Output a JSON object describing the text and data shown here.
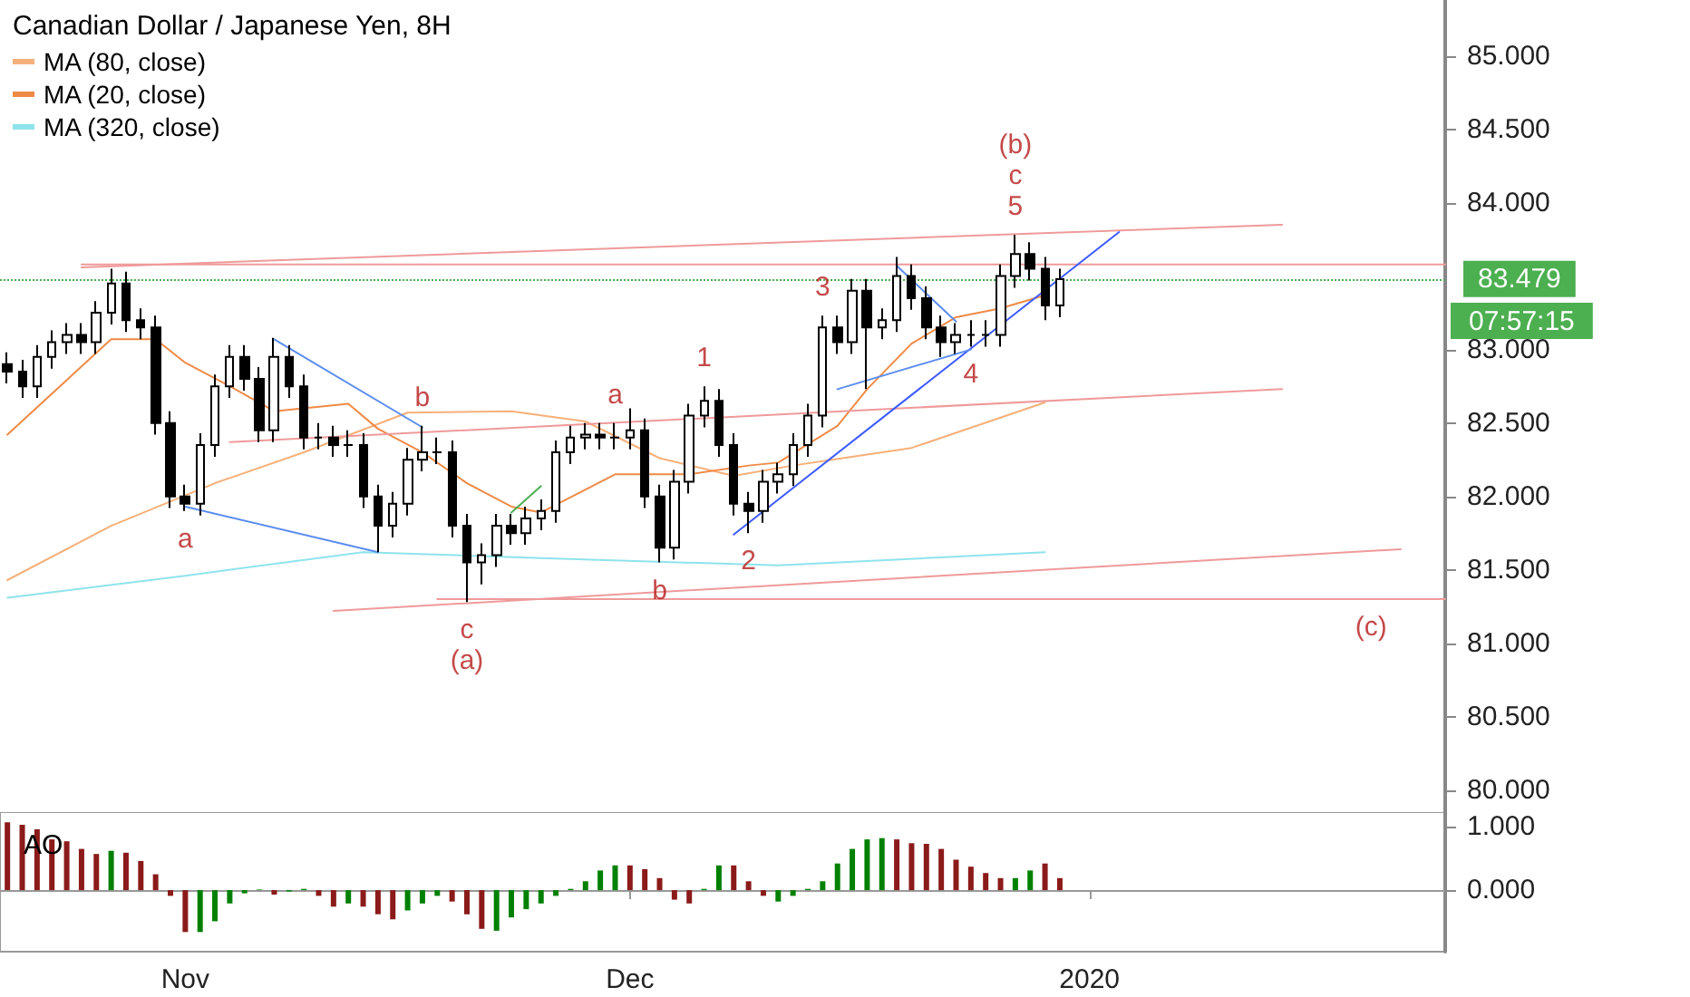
{
  "chart_data": [
    {
      "type": "candlestick",
      "title": "Canadian Dollar / Japanese Yen, 8H",
      "color": "#000000",
      "x": [
        "2019-10-20",
        "2019-10-21",
        "2019-10-22",
        "2019-10-23",
        "2019-10-24",
        "2019-10-25",
        "2019-10-26",
        "2019-10-27",
        "2019-10-28",
        "2019-10-29",
        "2019-10-30",
        "2019-10-31",
        "2019-11-01",
        "2019-11-02",
        "2019-11-03",
        "2019-11-04",
        "2019-11-05",
        "2019-11-06",
        "2019-11-07",
        "2019-11-08",
        "2019-11-09",
        "2019-11-10",
        "2019-11-11",
        "2019-11-12",
        "2019-11-13",
        "2019-11-14",
        "2019-11-15",
        "2019-11-16",
        "2019-11-17",
        "2019-11-18",
        "2019-11-19",
        "2019-11-20",
        "2019-11-21",
        "2019-11-22",
        "2019-11-23",
        "2019-11-24",
        "2019-11-25",
        "2019-11-26",
        "2019-11-27",
        "2019-11-28",
        "2019-11-29",
        "2019-11-30",
        "2019-12-01",
        "2019-12-02",
        "2019-12-03",
        "2019-12-04",
        "2019-12-05",
        "2019-12-06",
        "2019-12-07",
        "2019-12-08",
        "2019-12-09",
        "2019-12-10",
        "2019-12-11",
        "2019-12-12",
        "2019-12-13",
        "2019-12-14",
        "2019-12-15",
        "2019-12-16",
        "2019-12-17",
        "2019-12-18",
        "2019-12-19",
        "2019-12-20",
        "2019-12-21",
        "2019-12-22",
        "2019-12-23",
        "2019-12-24",
        "2019-12-25",
        "2019-12-26",
        "2019-12-27",
        "2019-12-28",
        "2019-12-29",
        "2019-12-30"
      ],
      "ohlc": [
        [
          82.9,
          82.98,
          82.77,
          82.85
        ],
        [
          82.85,
          82.93,
          82.67,
          82.75
        ],
        [
          82.75,
          83.03,
          82.67,
          82.95
        ],
        [
          82.95,
          83.13,
          82.87,
          83.05
        ],
        [
          83.05,
          83.18,
          82.97,
          83.1
        ],
        [
          83.1,
          83.18,
          82.97,
          83.05
        ],
        [
          83.05,
          83.33,
          82.97,
          83.25
        ],
        [
          83.25,
          83.55,
          83.17,
          83.45
        ],
        [
          83.45,
          83.53,
          83.12,
          83.2
        ],
        [
          83.2,
          83.28,
          83.07,
          83.15
        ],
        [
          83.15,
          83.23,
          82.42,
          82.5
        ],
        [
          82.5,
          82.58,
          81.92,
          82.0
        ],
        [
          82.0,
          82.08,
          81.9,
          81.95
        ],
        [
          81.95,
          82.43,
          81.87,
          82.35
        ],
        [
          82.35,
          82.83,
          82.27,
          82.75
        ],
        [
          82.75,
          83.03,
          82.67,
          82.95
        ],
        [
          82.95,
          83.03,
          82.72,
          82.8
        ],
        [
          82.8,
          82.88,
          82.37,
          82.45
        ],
        [
          82.45,
          83.08,
          82.37,
          82.95
        ],
        [
          82.95,
          83.03,
          82.67,
          82.75
        ],
        [
          82.75,
          82.83,
          82.32,
          82.4
        ],
        [
          82.4,
          82.5,
          82.32,
          82.4
        ],
        [
          82.4,
          82.48,
          82.27,
          82.35
        ],
        [
          82.35,
          82.45,
          82.27,
          82.35
        ],
        [
          82.35,
          82.43,
          81.92,
          82.0
        ],
        [
          82.0,
          82.08,
          81.62,
          81.8
        ],
        [
          81.8,
          82.03,
          81.72,
          81.95
        ],
        [
          81.95,
          82.33,
          81.87,
          82.25
        ],
        [
          82.25,
          82.48,
          82.17,
          82.3
        ],
        [
          82.3,
          82.4,
          82.22,
          82.3
        ],
        [
          82.3,
          82.38,
          81.72,
          81.8
        ],
        [
          81.8,
          81.88,
          81.28,
          81.55
        ],
        [
          81.55,
          81.68,
          81.4,
          81.6
        ],
        [
          81.6,
          81.88,
          81.52,
          81.8
        ],
        [
          81.8,
          81.88,
          81.67,
          81.75
        ],
        [
          81.75,
          81.93,
          81.67,
          81.85
        ],
        [
          81.85,
          81.98,
          81.77,
          81.9
        ],
        [
          81.9,
          82.38,
          81.82,
          82.3
        ],
        [
          82.3,
          82.48,
          82.22,
          82.4
        ],
        [
          82.4,
          82.5,
          82.32,
          82.42
        ],
        [
          82.42,
          82.5,
          82.32,
          82.4
        ],
        [
          82.4,
          82.5,
          82.32,
          82.4
        ],
        [
          82.4,
          82.6,
          82.32,
          82.45
        ],
        [
          82.45,
          82.53,
          81.92,
          82.0
        ],
        [
          82.0,
          82.08,
          81.55,
          81.65
        ],
        [
          81.65,
          82.18,
          81.57,
          82.1
        ],
        [
          82.1,
          82.63,
          82.02,
          82.55
        ],
        [
          82.55,
          82.75,
          82.47,
          82.65
        ],
        [
          82.65,
          82.73,
          82.27,
          82.35
        ],
        [
          82.35,
          82.43,
          81.87,
          81.95
        ],
        [
          81.95,
          82.03,
          81.75,
          81.9
        ],
        [
          81.9,
          82.18,
          81.82,
          82.1
        ],
        [
          82.1,
          82.23,
          82.02,
          82.15
        ],
        [
          82.15,
          82.43,
          82.07,
          82.35
        ],
        [
          82.35,
          82.63,
          82.27,
          82.55
        ],
        [
          82.55,
          83.23,
          82.47,
          83.15
        ],
        [
          83.15,
          83.23,
          82.97,
          83.05
        ],
        [
          83.05,
          83.48,
          82.97,
          83.4
        ],
        [
          83.4,
          83.48,
          82.73,
          83.15
        ],
        [
          83.15,
          83.28,
          83.07,
          83.2
        ],
        [
          83.2,
          83.63,
          83.12,
          83.5
        ],
        [
          83.5,
          83.58,
          83.27,
          83.35
        ],
        [
          83.35,
          83.43,
          83.07,
          83.15
        ],
        [
          83.15,
          83.23,
          82.95,
          83.05
        ],
        [
          83.05,
          83.18,
          82.97,
          83.1
        ],
        [
          83.1,
          83.2,
          83.02,
          83.1
        ],
        [
          83.1,
          83.2,
          83.02,
          83.1
        ],
        [
          83.1,
          83.58,
          83.02,
          83.5
        ],
        [
          83.5,
          83.78,
          83.42,
          83.65
        ],
        [
          83.65,
          83.73,
          83.47,
          83.55
        ],
        [
          83.55,
          83.63,
          83.2,
          83.3
        ],
        [
          83.3,
          83.55,
          83.22,
          83.479
        ]
      ],
      "series": [
        {
          "type": "line",
          "name": "MA (80, close)",
          "color": "#f6b07a",
          "x": [
            "2019-10-20",
            "2019-10-27",
            "2019-11-03",
            "2019-11-09",
            "2019-11-16",
            "2019-11-23",
            "2019-11-28",
            "2019-12-03",
            "2019-12-08",
            "2019-12-12",
            "2019-12-20",
            "2019-12-29"
          ],
          "values": [
            81.43,
            81.8,
            82.09,
            82.3,
            82.57,
            82.58,
            82.51,
            82.26,
            82.14,
            82.21,
            82.33,
            82.64
          ]
        },
        {
          "type": "line",
          "name": "MA (20, close)",
          "color": "#ef8a46",
          "x": [
            "2019-10-20",
            "2019-10-27",
            "2019-10-30",
            "2019-11-01",
            "2019-11-04",
            "2019-11-07",
            "2019-11-12",
            "2019-11-14",
            "2019-11-17",
            "2019-11-20",
            "2019-11-23",
            "2019-11-25",
            "2019-11-30",
            "2019-12-05",
            "2019-12-09",
            "2019-12-11",
            "2019-12-15",
            "2019-12-17",
            "2019-12-20",
            "2019-12-23",
            "2019-12-26",
            "2019-12-29"
          ],
          "values": [
            82.42,
            83.07,
            83.07,
            82.91,
            82.75,
            82.58,
            82.63,
            82.46,
            82.3,
            82.09,
            81.93,
            81.89,
            82.15,
            82.15,
            82.21,
            82.23,
            82.48,
            82.73,
            83.04,
            83.22,
            83.28,
            83.37
          ]
        },
        {
          "type": "line",
          "name": "MA (320, close)",
          "color": "#8fe3ec",
          "x": [
            "2019-10-20",
            "2019-11-01",
            "2019-11-13",
            "2019-11-25",
            "2019-12-11",
            "2019-12-29"
          ],
          "values": [
            81.31,
            81.46,
            81.62,
            81.58,
            81.53,
            81.62
          ]
        },
        {
          "type": "line",
          "color": "#ef9a9a",
          "x": [
            "2019-10-25",
            "2020-01-14"
          ],
          "values": [
            83.56,
            83.85
          ]
        },
        {
          "type": "line",
          "color": "#ef9a9a",
          "x": [
            "2019-10-25",
            "2020-01-25"
          ],
          "values": [
            83.58,
            83.58
          ]
        },
        {
          "type": "line",
          "color": "#ef9a9a",
          "x": [
            "2019-11-04",
            "2020-01-14"
          ],
          "values": [
            82.37,
            82.73
          ]
        },
        {
          "type": "line",
          "color": "#ef9a9a",
          "x": [
            "2019-11-11",
            "2020-01-22"
          ],
          "values": [
            81.22,
            81.64
          ]
        },
        {
          "type": "line",
          "color": "#ef9a9a",
          "x": [
            "2019-11-18",
            "2020-01-25"
          ],
          "values": [
            81.3,
            81.3
          ]
        },
        {
          "type": "line",
          "color": "#5b8def",
          "x": [
            "2019-11-01",
            "2019-11-14"
          ],
          "values": [
            81.93,
            81.62
          ]
        },
        {
          "type": "line",
          "color": "#5b8def",
          "x": [
            "2019-11-07",
            "2019-11-17"
          ],
          "values": [
            83.07,
            82.47
          ]
        },
        {
          "type": "line",
          "color": "#3d5afe",
          "x": [
            "2019-12-08",
            "2020-01-03"
          ],
          "values": [
            81.74,
            83.8
          ]
        },
        {
          "type": "line",
          "color": "#5b8def",
          "x": [
            "2019-12-15",
            "2019-12-24"
          ],
          "values": [
            82.73,
            83.0
          ]
        },
        {
          "type": "line",
          "color": "#5b8def",
          "x": [
            "2019-12-19",
            "2019-12-23"
          ],
          "values": [
            83.57,
            83.19
          ]
        },
        {
          "type": "line",
          "color": "#4caf50",
          "x": [
            "2019-11-23",
            "2019-11-25"
          ],
          "values": [
            81.89,
            82.07
          ]
        }
      ],
      "marker": "none",
      "legend": "top left",
      "tick_labels": "y",
      "xlim": [
        "2019-10-19T12:00",
        "2020-01-25"
      ],
      "ylim": [
        79.85,
        85.38
      ],
      "yticks": [
        {
          "value": 80,
          "label": "80.000"
        },
        {
          "value": 80.5,
          "label": "80.500"
        },
        {
          "value": 81,
          "label": "81.000"
        },
        {
          "value": 81.5,
          "label": "81.500"
        },
        {
          "value": 82,
          "label": "82.000"
        },
        {
          "value": 82.5,
          "label": "82.500"
        },
        {
          "value": 83,
          "label": "83.000"
        },
        {
          "value": 84,
          "label": "84.000"
        },
        {
          "value": 84.5,
          "label": "84.500"
        },
        {
          "value": 85,
          "label": "85.000"
        }
      ],
      "ref_lines": [
        {
          "axis": "y",
          "value": 83.479,
          "label": "83.479",
          "color": "#4caf50",
          "line_style": "dotted"
        }
      ],
      "annotations": [
        "07:57:15",
        {
          "text": "a",
          "x": "2019-11-01",
          "y": 81.9
        },
        {
          "text": "b",
          "x": "2019-11-17",
          "y": 82.48
        },
        {
          "text": "c",
          "x": "2019-11-20",
          "y": 81.28
        },
        {
          "text": "(a)",
          "x": "2019-11-20",
          "y": 81.28
        },
        {
          "text": "a",
          "x": "2019-11-30",
          "y": 82.5
        },
        {
          "text": "b",
          "x": "2019-12-03",
          "y": 81.55
        },
        {
          "text": "1",
          "x": "2019-12-06",
          "y": 82.75
        },
        {
          "text": "2",
          "x": "2019-12-09",
          "y": 81.75
        },
        {
          "text": "3",
          "x": "2019-12-14",
          "y": 83.23
        },
        {
          "text": "4",
          "x": "2019-12-24",
          "y": 83.02
        },
        {
          "text": "5",
          "x": "2019-12-27",
          "y": 83.78
        },
        {
          "text": "c",
          "x": "2019-12-27",
          "y": 83.78
        },
        {
          "text": "(b)",
          "x": "2019-12-27",
          "y": 83.78
        },
        {
          "text": "(c)",
          "x": "2020-01-20",
          "y": 81.3
        }
      ]
    },
    {
      "type": "bar",
      "title": "AO",
      "x": [
        "2019-10-20",
        "2019-10-21",
        "2019-10-22",
        "2019-10-23",
        "2019-10-24",
        "2019-10-25",
        "2019-10-26",
        "2019-10-27",
        "2019-10-28",
        "2019-10-29",
        "2019-10-30",
        "2019-10-31",
        "2019-11-01",
        "2019-11-02",
        "2019-11-03",
        "2019-11-04",
        "2019-11-05",
        "2019-11-06",
        "2019-11-07",
        "2019-11-08",
        "2019-11-09",
        "2019-11-10",
        "2019-11-11",
        "2019-11-12",
        "2019-11-13",
        "2019-11-14",
        "2019-11-15",
        "2019-11-16",
        "2019-11-17",
        "2019-11-18",
        "2019-11-19",
        "2019-11-20",
        "2019-11-21",
        "2019-11-22",
        "2019-11-23",
        "2019-11-24",
        "2019-11-25",
        "2019-11-26",
        "2019-11-27",
        "2019-11-28",
        "2019-11-29",
        "2019-11-30",
        "2019-12-01",
        "2019-12-02",
        "2019-12-03",
        "2019-12-04",
        "2019-12-05",
        "2019-12-06",
        "2019-12-07",
        "2019-12-08",
        "2019-12-09",
        "2019-12-10",
        "2019-12-11",
        "2019-12-12",
        "2019-12-13",
        "2019-12-14",
        "2019-12-15",
        "2019-12-16",
        "2019-12-17",
        "2019-12-18",
        "2019-12-19",
        "2019-12-20",
        "2019-12-21",
        "2019-12-22",
        "2019-12-23",
        "2019-12-24",
        "2019-12-25",
        "2019-12-26",
        "2019-12-27",
        "2019-12-28",
        "2019-12-29",
        "2019-12-30"
      ],
      "values": [
        1.07,
        1.03,
        0.96,
        0.8,
        0.77,
        0.65,
        0.57,
        0.62,
        0.59,
        0.46,
        0.25,
        -0.09,
        -0.66,
        -0.66,
        -0.49,
        -0.21,
        -0.05,
        0.01,
        -0.07,
        -0.02,
        0.02,
        -0.09,
        -0.26,
        -0.21,
        -0.26,
        -0.38,
        -0.46,
        -0.32,
        -0.21,
        -0.09,
        -0.18,
        -0.38,
        -0.61,
        -0.64,
        -0.43,
        -0.3,
        -0.21,
        -0.09,
        0.02,
        0.14,
        0.31,
        0.39,
        0.39,
        0.33,
        0.19,
        -0.15,
        -0.21,
        0.02,
        0.39,
        0.39,
        0.14,
        -0.09,
        -0.18,
        -0.09,
        0.02,
        0.14,
        0.42,
        0.65,
        0.8,
        0.82,
        0.8,
        0.74,
        0.73,
        0.65,
        0.48,
        0.37,
        0.27,
        0.19,
        0.19,
        0.31,
        0.42,
        0.19
      ],
      "colors": [
        "#8b1a1a",
        "#8b1a1a",
        "#8b1a1a",
        "#8b1a1a",
        "#8b1a1a",
        "#8b1a1a",
        "#8b1a1a",
        "#008000",
        "#8b1a1a",
        "#8b1a1a",
        "#8b1a1a",
        "#8b1a1a",
        "#8b1a1a",
        "#008000",
        "#008000",
        "#008000",
        "#008000",
        "#008000",
        "#8b1a1a",
        "#008000",
        "#008000",
        "#8b1a1a",
        "#8b1a1a",
        "#008000",
        "#8b1a1a",
        "#8b1a1a",
        "#8b1a1a",
        "#008000",
        "#008000",
        "#008000",
        "#8b1a1a",
        "#8b1a1a",
        "#8b1a1a",
        "#008000",
        "#008000",
        "#008000",
        "#008000",
        "#008000",
        "#008000",
        "#008000",
        "#008000",
        "#008000",
        "#8b1a1a",
        "#8b1a1a",
        "#8b1a1a",
        "#8b1a1a",
        "#8b1a1a",
        "#008000",
        "#008000",
        "#8b1a1a",
        "#8b1a1a",
        "#8b1a1a",
        "#008000",
        "#008000",
        "#008000",
        "#008000",
        "#008000",
        "#008000",
        "#008000",
        "#008000",
        "#8b1a1a",
        "#8b1a1a",
        "#8b1a1a",
        "#8b1a1a",
        "#8b1a1a",
        "#8b1a1a",
        "#8b1a1a",
        "#8b1a1a",
        "#008000",
        "#008000",
        "#8b1a1a",
        "#8b1a1a"
      ],
      "xlim": [
        "2019-10-19T12:00",
        "2020-01-25"
      ],
      "xticks": [
        {
          "value": "2019-11-01",
          "label": "Nov"
        },
        {
          "value": "2019-12-01",
          "label": "Dec"
        },
        {
          "value": "2020-01-01",
          "label": "2020"
        }
      ],
      "ylim": [
        -0.97,
        1.23
      ],
      "yticks": [
        {
          "value": 0,
          "label": "0.000"
        },
        {
          "value": 1,
          "label": "1.000"
        }
      ]
    }
  ]
}
